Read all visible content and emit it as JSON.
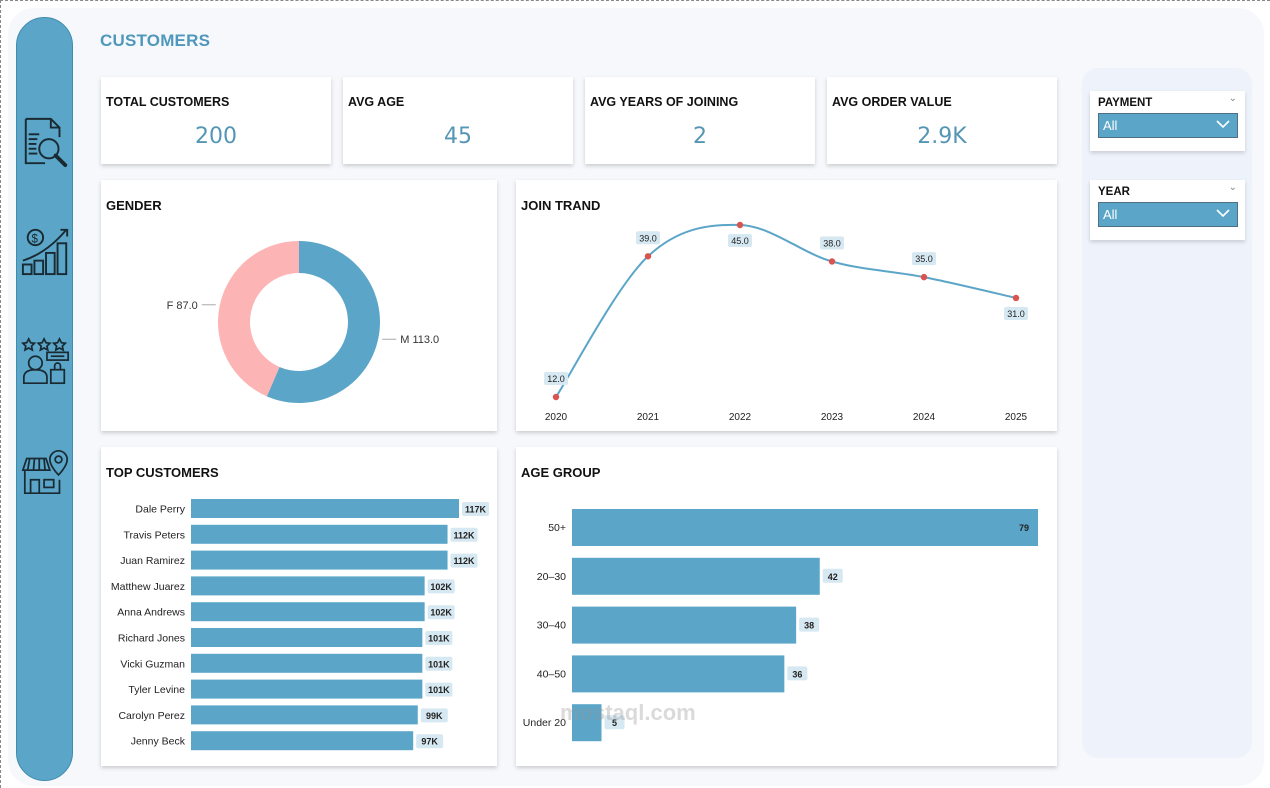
{
  "page": {
    "title": "CUSTOMERS",
    "accent_color": "#5ba6c8",
    "title_color": "#4f98bb"
  },
  "sidebar": {
    "items": [
      {
        "icon": "report-search-icon",
        "label": "Report search"
      },
      {
        "icon": "sales-growth-icon",
        "label": "Sales growth"
      },
      {
        "icon": "customer-rating-icon",
        "label": "Customers"
      },
      {
        "icon": "store-location-icon",
        "label": "Store location"
      }
    ]
  },
  "kpis": [
    {
      "label": "TOTAL CUSTOMERS",
      "value": "200"
    },
    {
      "label": "AVG AGE",
      "value": "45"
    },
    {
      "label": "AVG YEARS OF JOINING",
      "value": "2"
    },
    {
      "label": "AVG ORDER VALUE",
      "value": "2.9K"
    }
  ],
  "slicers": [
    {
      "label": "PAYMENT",
      "value": "All"
    },
    {
      "label": "YEAR",
      "value": "All"
    }
  ],
  "watermark": "mostaql.com",
  "chart_data": [
    {
      "id": "gender",
      "type": "pie",
      "title": "GENDER",
      "donut": true,
      "slices": [
        {
          "label": "M",
          "value": 113.0,
          "display": "M 113.0",
          "color": "#5ba6c8"
        },
        {
          "label": "F",
          "value": 87.0,
          "display": "F 87.0",
          "color": "#fdb4b4"
        }
      ]
    },
    {
      "id": "join_trend",
      "type": "line",
      "title": "JOIN TRAND",
      "x": [
        "2020",
        "2021",
        "2022",
        "2023",
        "2024",
        "2025"
      ],
      "values": [
        12.0,
        39.0,
        45.0,
        38.0,
        35.0,
        31.0
      ],
      "labels": [
        "12.0",
        "39.0",
        "45.0",
        "38.0",
        "35.0",
        "31.0"
      ],
      "line_color": "#5ba6c8",
      "marker_color": "#d9534f",
      "grid": false
    },
    {
      "id": "top_customers",
      "type": "bar",
      "orientation": "horizontal",
      "title": "TOP CUSTOMERS",
      "categories": [
        "Dale Perry",
        "Travis Peters",
        "Juan Ramirez",
        "Matthew Juarez",
        "Anna Andrews",
        "Richard Jones",
        "Vicki Guzman",
        "Tyler Levine",
        "Carolyn Perez",
        "Jenny Beck"
      ],
      "values": [
        117,
        112,
        112,
        102,
        102,
        101,
        101,
        101,
        99,
        97
      ],
      "labels": [
        "117K",
        "112K",
        "112K",
        "102K",
        "102K",
        "101K",
        "101K",
        "101K",
        "99K",
        "97K"
      ],
      "unit": "K",
      "xlim": [
        0,
        117
      ],
      "color": "#5ba6c8"
    },
    {
      "id": "age_group",
      "type": "bar",
      "orientation": "horizontal",
      "title": "AGE GROUP",
      "categories": [
        "50+",
        "20–30",
        "30–40",
        "40–50",
        "Under 20"
      ],
      "values": [
        79,
        42,
        38,
        36,
        5
      ],
      "labels": [
        "79",
        "42",
        "38",
        "36",
        "5"
      ],
      "xlim": [
        0,
        79
      ],
      "color": "#5ba6c8"
    }
  ]
}
